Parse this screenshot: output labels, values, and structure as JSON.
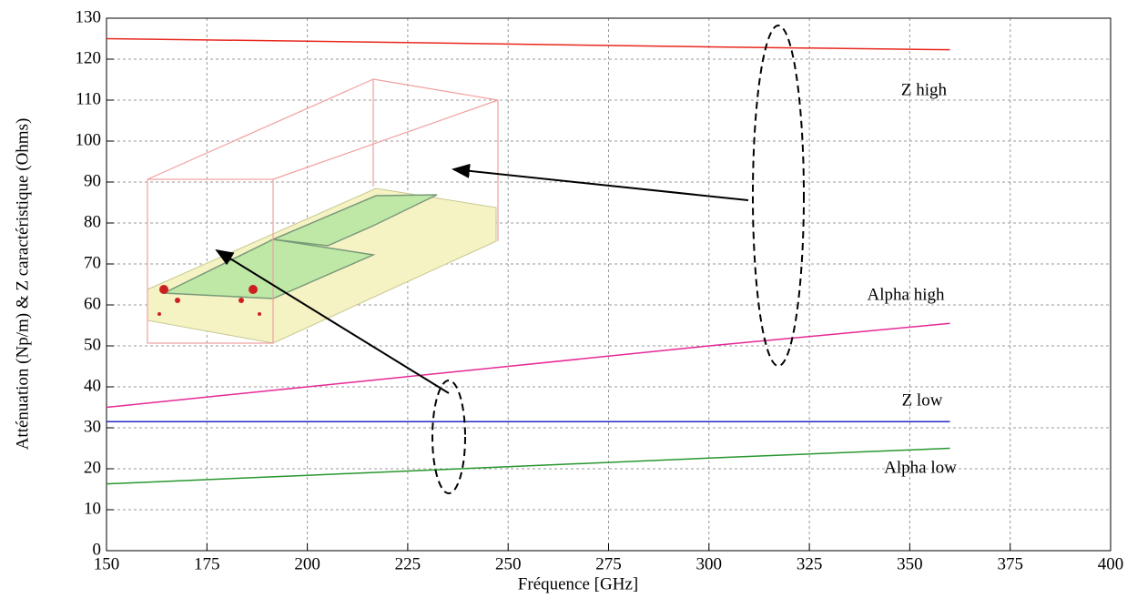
{
  "chart_data": {
    "type": "line",
    "x_label": "Fréquence [GHz]",
    "y_label": "Atténuation (Np/m) & Z caractéristique (Ohms)",
    "x": [
      150,
      200,
      250,
      300,
      360
    ],
    "series": [
      {
        "name": "Z high",
        "color": "#e8281e",
        "values": [
          125,
          124.4,
          123.7,
          123,
          122.3
        ]
      },
      {
        "name": "Alpha high",
        "color": "#e62896",
        "values": [
          35,
          40,
          45,
          50,
          55.5
        ]
      },
      {
        "name": "Z low",
        "color": "#2828c8",
        "values": [
          31.5,
          31.5,
          31.5,
          31.5,
          31.5
        ]
      },
      {
        "name": "Alpha low",
        "color": "#28962d",
        "values": [
          16.3,
          18.4,
          20.5,
          22.6,
          25
        ]
      }
    ],
    "xlim": [
      150,
      400
    ],
    "xticks": [
      150,
      175,
      200,
      225,
      250,
      275,
      300,
      325,
      350,
      375,
      400
    ],
    "ylim": [
      0,
      130
    ],
    "yticks": [
      0,
      10,
      20,
      30,
      40,
      50,
      60,
      70,
      80,
      90,
      100,
      110,
      120,
      130
    ],
    "grid": true
  }
}
